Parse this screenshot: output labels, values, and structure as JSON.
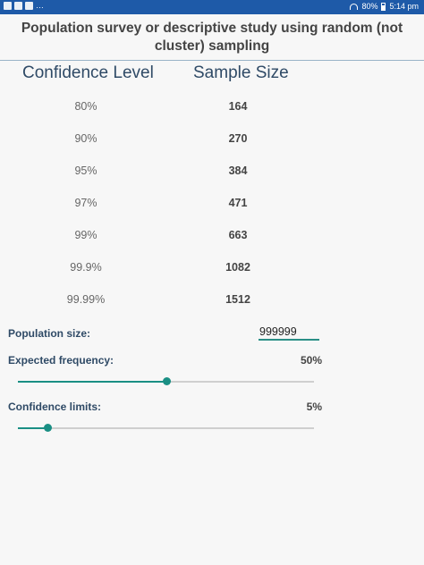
{
  "status_bar": {
    "left_dots": "…",
    "battery": "80%",
    "time": "5:14 pm"
  },
  "header": {
    "title": "Population survey or descriptive study using random (not cluster) sampling"
  },
  "table": {
    "headers": {
      "level": "Confidence Level",
      "size": "Sample Size"
    },
    "rows": [
      {
        "level": "80%",
        "size": "164"
      },
      {
        "level": "90%",
        "size": "270"
      },
      {
        "level": "95%",
        "size": "384"
      },
      {
        "level": "97%",
        "size": "471"
      },
      {
        "level": "99%",
        "size": "663"
      },
      {
        "level": "99.9%",
        "size": "1082"
      },
      {
        "level": "99.99%",
        "size": "1512"
      }
    ]
  },
  "population": {
    "label": "Population size:",
    "value": "999999"
  },
  "expected_frequency": {
    "label": "Expected frequency:",
    "value": "50%",
    "level": 0.5
  },
  "confidence_limits": {
    "label": "Confidence limits:",
    "value": "5%",
    "level": 0.1
  },
  "colors": {
    "status_bar": "#1e5aa8",
    "accent": "#1a8f84",
    "heading": "#2f4a66"
  }
}
